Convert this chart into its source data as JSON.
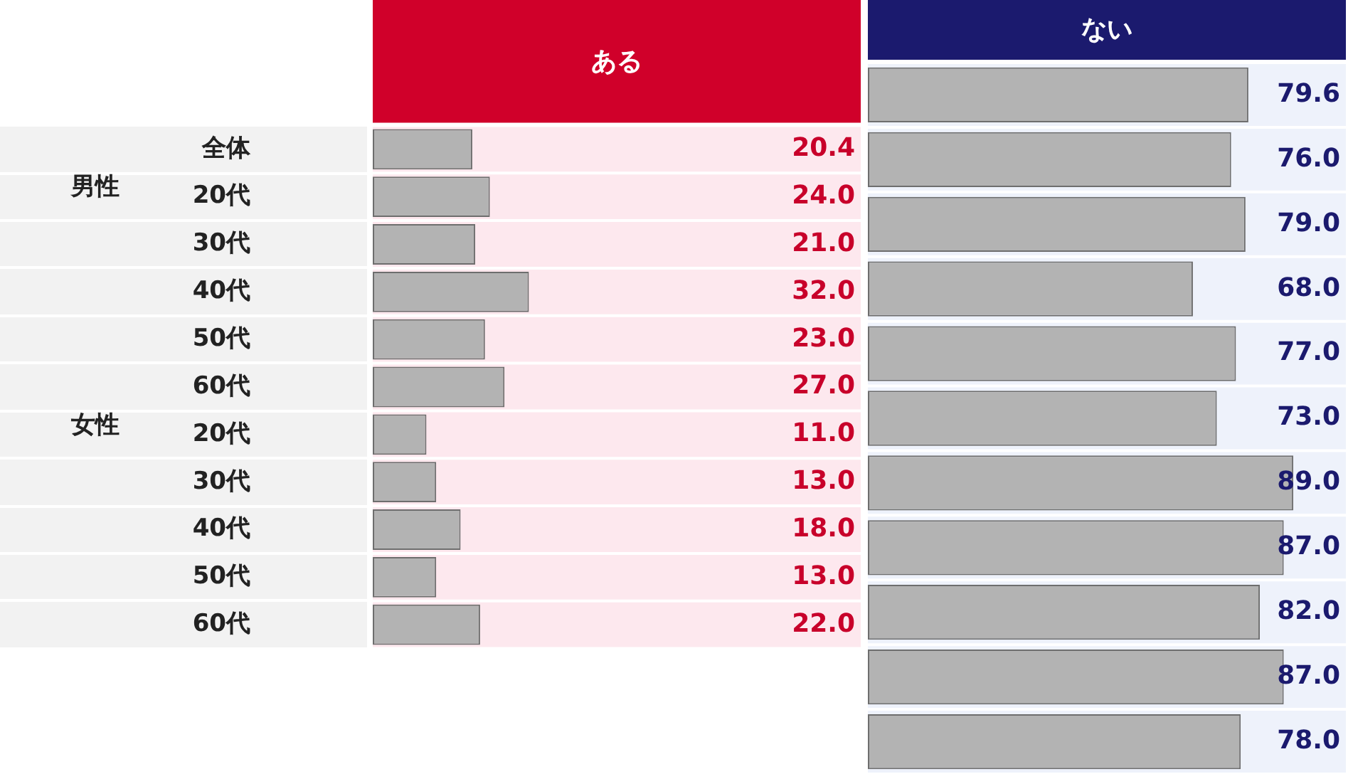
{
  "chart_data": [
    {
      "type": "bar",
      "orientation": "horizontal",
      "title": "ある",
      "categories": [
        "全体",
        "20代",
        "30代",
        "40代",
        "50代",
        "60代",
        "20代",
        "30代",
        "40代",
        "50代",
        "60代"
      ],
      "series": [
        {
          "color": "#b3b3b3",
          "values": [
            20.4,
            24,
            21,
            32,
            23,
            27,
            11,
            13,
            18,
            13,
            22
          ],
          "value_labels": [
            "20.4",
            "24.0",
            "21.0",
            "32.0",
            "23.0",
            "27.0",
            "11.0",
            "13.0",
            "18.0",
            "13.0",
            "22.0"
          ]
        }
      ],
      "xlim": [
        0,
        100
      ],
      "tick_labels": "y",
      "annotations": [
        "男性",
        "女性"
      ]
    },
    {
      "type": "bar",
      "orientation": "horizontal",
      "title": "ない",
      "categories": [
        null,
        null,
        null,
        null,
        null,
        null,
        null,
        null,
        null,
        null,
        null
      ],
      "series": [
        {
          "color": "#b3b3b3",
          "values": [
            79.6,
            76,
            79,
            68,
            77,
            73,
            89,
            87,
            82,
            87,
            78
          ],
          "value_labels": [
            "79.6",
            "76.0",
            "79.0",
            "68.0",
            "77.0",
            "73.0",
            "89.0",
            "87.0",
            "82.0",
            "87.0",
            "78.0"
          ]
        }
      ],
      "xlim": [
        0,
        100
      ],
      "tick_labels": false
    }
  ]
}
